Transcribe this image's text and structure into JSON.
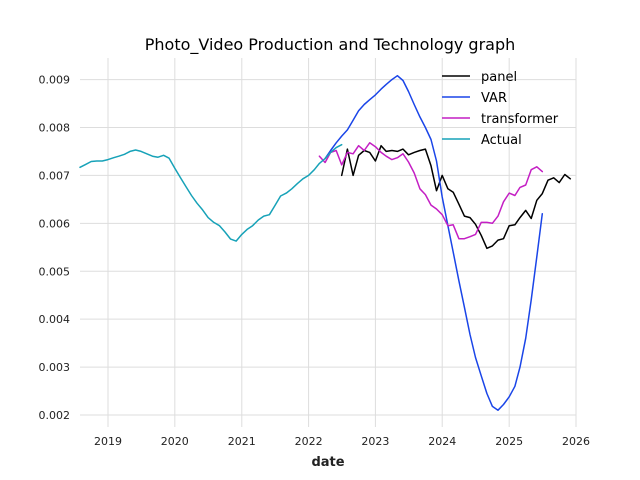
{
  "chart_data": {
    "type": "line",
    "title": "Photo_Video Production and Technology graph",
    "xlabel": "date",
    "ylabel": "",
    "xlim": [
      "2018-08-01",
      "2026-01-01"
    ],
    "ylim": [
      0.00175,
      0.00945
    ],
    "x_ticks": [
      {
        "date": "2019-01-01",
        "label": "2019"
      },
      {
        "date": "2020-01-01",
        "label": "2020"
      },
      {
        "date": "2021-01-01",
        "label": "2021"
      },
      {
        "date": "2022-01-01",
        "label": "2022"
      },
      {
        "date": "2023-01-01",
        "label": "2023"
      },
      {
        "date": "2024-01-01",
        "label": "2024"
      },
      {
        "date": "2025-01-01",
        "label": "2025"
      },
      {
        "date": "2026-01-01",
        "label": "2026"
      }
    ],
    "y_ticks": [
      {
        "value": 0.002,
        "label": "0.002"
      },
      {
        "value": 0.003,
        "label": "0.003"
      },
      {
        "value": 0.004,
        "label": "0.004"
      },
      {
        "value": 0.005,
        "label": "0.005"
      },
      {
        "value": 0.006,
        "label": "0.006"
      },
      {
        "value": 0.007,
        "label": "0.007"
      },
      {
        "value": 0.008,
        "label": "0.008"
      },
      {
        "value": 0.009,
        "label": "0.009"
      }
    ],
    "grid": true,
    "legend_position": "top-right",
    "series": [
      {
        "name": "panel",
        "color": "#000000",
        "points": [
          [
            "2022-07-01",
            0.007
          ],
          [
            "2022-08-01",
            0.00755
          ],
          [
            "2022-09-01",
            0.007
          ],
          [
            "2022-10-01",
            0.00742
          ],
          [
            "2022-11-01",
            0.00752
          ],
          [
            "2022-12-01",
            0.00748
          ],
          [
            "2023-01-01",
            0.0073
          ],
          [
            "2023-02-01",
            0.00762
          ],
          [
            "2023-03-01",
            0.0075
          ],
          [
            "2023-04-01",
            0.00752
          ],
          [
            "2023-05-01",
            0.0075
          ],
          [
            "2023-06-01",
            0.00755
          ],
          [
            "2023-07-01",
            0.00743
          ],
          [
            "2023-08-01",
            0.00748
          ],
          [
            "2023-09-01",
            0.00752
          ],
          [
            "2023-10-01",
            0.00755
          ],
          [
            "2023-11-01",
            0.0072
          ],
          [
            "2023-12-01",
            0.00668
          ],
          [
            "2024-01-01",
            0.007
          ],
          [
            "2024-02-01",
            0.00672
          ],
          [
            "2024-03-01",
            0.00665
          ],
          [
            "2024-04-01",
            0.0064
          ],
          [
            "2024-05-01",
            0.00615
          ],
          [
            "2024-06-01",
            0.00612
          ],
          [
            "2024-07-01",
            0.00598
          ],
          [
            "2024-08-01",
            0.00575
          ],
          [
            "2024-09-01",
            0.00548
          ],
          [
            "2024-10-01",
            0.00553
          ],
          [
            "2024-11-01",
            0.00565
          ],
          [
            "2024-12-01",
            0.00568
          ],
          [
            "2025-01-01",
            0.00595
          ],
          [
            "2025-02-01",
            0.00597
          ],
          [
            "2025-03-01",
            0.00612
          ],
          [
            "2025-04-01",
            0.00627
          ],
          [
            "2025-05-01",
            0.0061
          ],
          [
            "2025-06-01",
            0.00648
          ],
          [
            "2025-07-01",
            0.00662
          ],
          [
            "2025-08-01",
            0.0069
          ],
          [
            "2025-09-01",
            0.00695
          ],
          [
            "2025-10-01",
            0.00685
          ],
          [
            "2025-11-01",
            0.00702
          ],
          [
            "2025-12-01",
            0.00693
          ]
        ]
      },
      {
        "name": "VAR",
        "color": "#1a45e8",
        "points": [
          [
            "2022-04-01",
            0.00735
          ],
          [
            "2022-05-01",
            0.00752
          ],
          [
            "2022-06-01",
            0.00768
          ],
          [
            "2022-07-01",
            0.00782
          ],
          [
            "2022-08-01",
            0.00795
          ],
          [
            "2022-09-01",
            0.00815
          ],
          [
            "2022-10-01",
            0.00835
          ],
          [
            "2022-11-01",
            0.00848
          ],
          [
            "2022-12-01",
            0.00858
          ],
          [
            "2023-01-01",
            0.00868
          ],
          [
            "2023-02-01",
            0.0088
          ],
          [
            "2023-03-01",
            0.0089
          ],
          [
            "2023-04-01",
            0.009
          ],
          [
            "2023-05-01",
            0.00908
          ],
          [
            "2023-06-01",
            0.00898
          ],
          [
            "2023-07-01",
            0.00875
          ],
          [
            "2023-08-01",
            0.00848
          ],
          [
            "2023-09-01",
            0.00822
          ],
          [
            "2023-10-01",
            0.008
          ],
          [
            "2023-11-01",
            0.00775
          ],
          [
            "2023-12-01",
            0.0073
          ],
          [
            "2024-01-01",
            0.00655
          ],
          [
            "2024-02-01",
            0.00595
          ],
          [
            "2024-03-01",
            0.0054
          ],
          [
            "2024-04-01",
            0.0048
          ],
          [
            "2024-05-01",
            0.00425
          ],
          [
            "2024-06-01",
            0.00368
          ],
          [
            "2024-07-01",
            0.0032
          ],
          [
            "2024-08-01",
            0.00282
          ],
          [
            "2024-09-01",
            0.00245
          ],
          [
            "2024-10-01",
            0.00218
          ],
          [
            "2024-11-01",
            0.0021
          ],
          [
            "2024-12-01",
            0.00222
          ],
          [
            "2025-01-01",
            0.00238
          ],
          [
            "2025-02-01",
            0.0026
          ],
          [
            "2025-03-01",
            0.003
          ],
          [
            "2025-04-01",
            0.0036
          ],
          [
            "2025-05-01",
            0.0044
          ],
          [
            "2025-06-01",
            0.0053
          ],
          [
            "2025-07-01",
            0.0062
          ]
        ]
      },
      {
        "name": "transformer",
        "color": "#c41fc4",
        "points": [
          [
            "2022-03-01",
            0.0074
          ],
          [
            "2022-04-01",
            0.00727
          ],
          [
            "2022-05-01",
            0.00748
          ],
          [
            "2022-06-01",
            0.00752
          ],
          [
            "2022-07-01",
            0.00722
          ],
          [
            "2022-08-01",
            0.00748
          ],
          [
            "2022-09-01",
            0.00745
          ],
          [
            "2022-10-01",
            0.00762
          ],
          [
            "2022-11-01",
            0.00752
          ],
          [
            "2022-12-01",
            0.00768
          ],
          [
            "2023-01-01",
            0.0076
          ],
          [
            "2023-02-01",
            0.00748
          ],
          [
            "2023-03-01",
            0.0074
          ],
          [
            "2023-04-01",
            0.00733
          ],
          [
            "2023-05-01",
            0.00737
          ],
          [
            "2023-06-01",
            0.00745
          ],
          [
            "2023-07-01",
            0.00728
          ],
          [
            "2023-08-01",
            0.00705
          ],
          [
            "2023-09-01",
            0.00672
          ],
          [
            "2023-10-01",
            0.0066
          ],
          [
            "2023-11-01",
            0.00638
          ],
          [
            "2023-12-01",
            0.0063
          ],
          [
            "2024-01-01",
            0.00618
          ],
          [
            "2024-02-01",
            0.00595
          ],
          [
            "2024-03-01",
            0.00597
          ],
          [
            "2024-04-01",
            0.00568
          ],
          [
            "2024-05-01",
            0.00568
          ],
          [
            "2024-06-01",
            0.00572
          ],
          [
            "2024-07-01",
            0.00577
          ],
          [
            "2024-08-01",
            0.00602
          ],
          [
            "2024-09-01",
            0.00602
          ],
          [
            "2024-10-01",
            0.006
          ],
          [
            "2024-11-01",
            0.00615
          ],
          [
            "2024-12-01",
            0.00645
          ],
          [
            "2025-01-01",
            0.00663
          ],
          [
            "2025-02-01",
            0.00658
          ],
          [
            "2025-03-01",
            0.00675
          ],
          [
            "2025-04-01",
            0.0068
          ],
          [
            "2025-05-01",
            0.00712
          ],
          [
            "2025-06-01",
            0.00718
          ],
          [
            "2025-07-01",
            0.00708
          ]
        ]
      },
      {
        "name": "Actual",
        "color": "#17a2b8",
        "points": [
          [
            "2018-08-01",
            0.00717
          ],
          [
            "2018-09-01",
            0.00723
          ],
          [
            "2018-10-01",
            0.00729
          ],
          [
            "2018-11-01",
            0.0073
          ],
          [
            "2018-12-01",
            0.0073
          ],
          [
            "2019-01-01",
            0.00733
          ],
          [
            "2019-02-01",
            0.00737
          ],
          [
            "2019-03-01",
            0.0074
          ],
          [
            "2019-04-01",
            0.00744
          ],
          [
            "2019-05-01",
            0.0075
          ],
          [
            "2019-06-01",
            0.00753
          ],
          [
            "2019-07-01",
            0.0075
          ],
          [
            "2019-08-01",
            0.00745
          ],
          [
            "2019-09-01",
            0.0074
          ],
          [
            "2019-10-01",
            0.00738
          ],
          [
            "2019-11-01",
            0.00742
          ],
          [
            "2019-12-01",
            0.00736
          ],
          [
            "2020-01-01",
            0.00715
          ],
          [
            "2020-02-01",
            0.00695
          ],
          [
            "2020-03-01",
            0.00677
          ],
          [
            "2020-04-01",
            0.00658
          ],
          [
            "2020-05-01",
            0.00642
          ],
          [
            "2020-06-01",
            0.00628
          ],
          [
            "2020-07-01",
            0.00612
          ],
          [
            "2020-08-01",
            0.00602
          ],
          [
            "2020-09-01",
            0.00595
          ],
          [
            "2020-10-01",
            0.00582
          ],
          [
            "2020-11-01",
            0.00567
          ],
          [
            "2020-12-01",
            0.00563
          ],
          [
            "2021-01-01",
            0.00577
          ],
          [
            "2021-02-01",
            0.00588
          ],
          [
            "2021-03-01",
            0.00595
          ],
          [
            "2021-04-01",
            0.00607
          ],
          [
            "2021-05-01",
            0.00615
          ],
          [
            "2021-06-01",
            0.00618
          ],
          [
            "2021-07-01",
            0.00637
          ],
          [
            "2021-08-01",
            0.00657
          ],
          [
            "2021-09-01",
            0.00663
          ],
          [
            "2021-10-01",
            0.00672
          ],
          [
            "2021-11-01",
            0.00683
          ],
          [
            "2021-12-01",
            0.00693
          ],
          [
            "2022-01-01",
            0.007
          ],
          [
            "2022-02-01",
            0.00712
          ],
          [
            "2022-03-01",
            0.00725
          ],
          [
            "2022-04-01",
            0.00735
          ],
          [
            "2022-05-01",
            0.00748
          ],
          [
            "2022-06-01",
            0.00758
          ],
          [
            "2022-07-01",
            0.00764
          ]
        ]
      }
    ]
  }
}
